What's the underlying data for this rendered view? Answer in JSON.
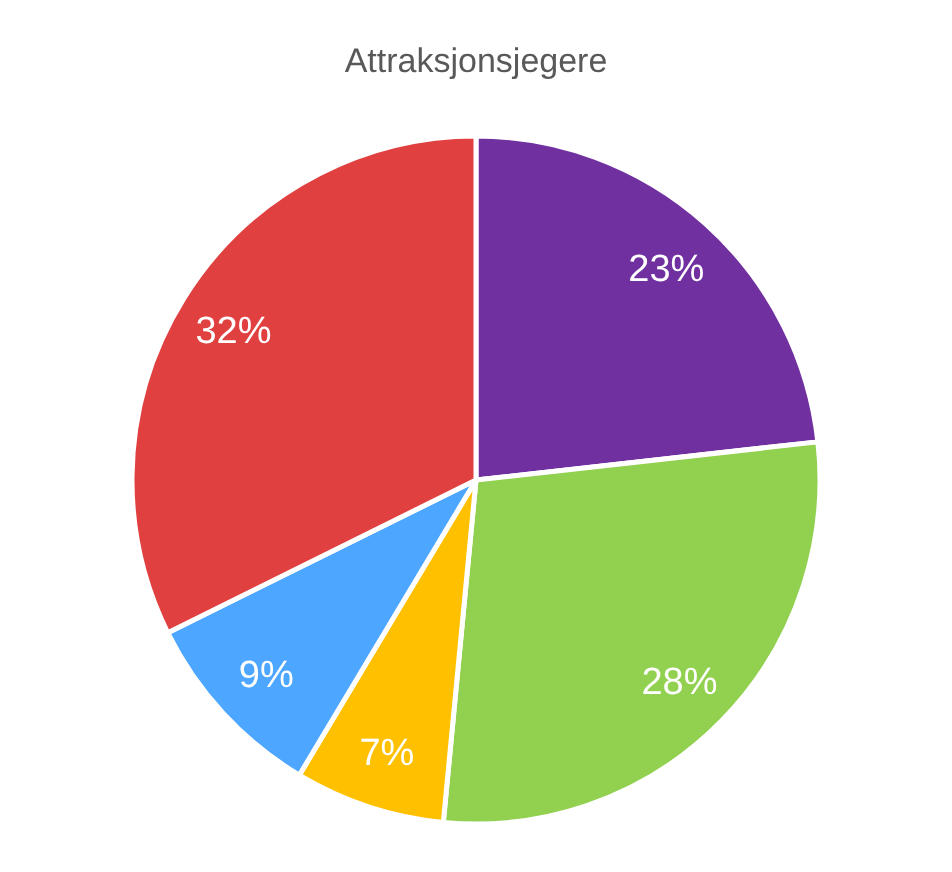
{
  "chart_data": {
    "type": "pie",
    "title": "Attraksjonsjegere",
    "categories": [
      null,
      null,
      null,
      null,
      null
    ],
    "values": [
      23,
      28,
      7,
      9,
      32
    ],
    "colors": [
      "#7030a0",
      "#92d050",
      "#ffc000",
      "#4da6ff",
      "#e04040"
    ],
    "value_labels": [
      "23%",
      "28%",
      "7%",
      "9%",
      "32%"
    ]
  }
}
